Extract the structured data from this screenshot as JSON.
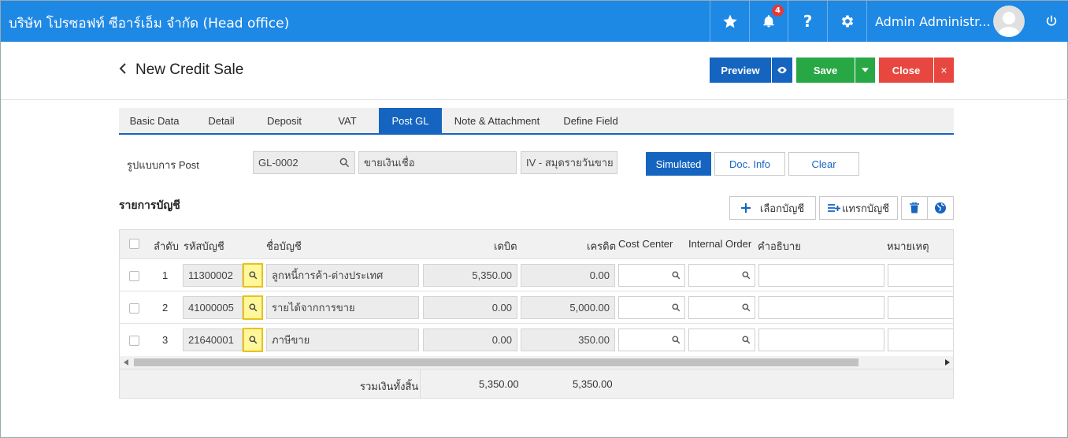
{
  "header": {
    "company": "บริษัท โปรซอฟท์ ซีอาร์เอ็ม จำกัด (Head office)",
    "notification_count": "4",
    "username": "Admin Administr...",
    "help": "?"
  },
  "page": {
    "title": "New Credit Sale",
    "buttons": {
      "preview": "Preview",
      "save": "Save",
      "close": "Close",
      "close_x": "×"
    }
  },
  "tabs": [
    "Basic Data",
    "Detail",
    "Deposit",
    "VAT",
    "Post GL",
    "Note & Attachment",
    "Define Field"
  ],
  "active_tab": "Post GL",
  "post": {
    "label": "รูปแบบการ Post",
    "code": "GL-0002",
    "name": "ขายเงินเชื่อ",
    "journal": "IV - สมุดรายวันขาย",
    "buttons": {
      "simulated": "Simulated",
      "doc_info": "Doc. Info",
      "clear": "Clear"
    }
  },
  "accounts": {
    "title": "รายการบัญชี",
    "select_label": "เลือกบัญชี",
    "insert_label": "แทรกบัญชี",
    "columns": {
      "no": "ลำดับ",
      "code": "รหัสบัญชี",
      "name": "ชื่อบัญชี",
      "debit": "เดบิต",
      "credit": "เครดิต",
      "cost_center": "Cost Center",
      "internal_order": "Internal Order",
      "description": "คำอธิบาย",
      "remark": "หมายเหตุ"
    },
    "rows": [
      {
        "no": "1",
        "code": "11300002",
        "name": "ลูกหนี้การค้า-ต่างประเทศ",
        "debit": "5,350.00",
        "credit": "0.00"
      },
      {
        "no": "2",
        "code": "41000005",
        "name": "รายได้จากการขาย",
        "debit": "0.00",
        "credit": "5,000.00"
      },
      {
        "no": "3",
        "code": "21640001",
        "name": "ภาษีขาย",
        "debit": "0.00",
        "credit": "350.00"
      }
    ],
    "total_label": "รวมเงินทั้งสิ้น",
    "total_debit": "5,350.00",
    "total_credit": "5,350.00"
  },
  "colors": {
    "brand": "#1e88e5",
    "primary": "#1565c0",
    "save": "#28a745",
    "close": "#e8473f",
    "highlight": "#fff79a"
  }
}
